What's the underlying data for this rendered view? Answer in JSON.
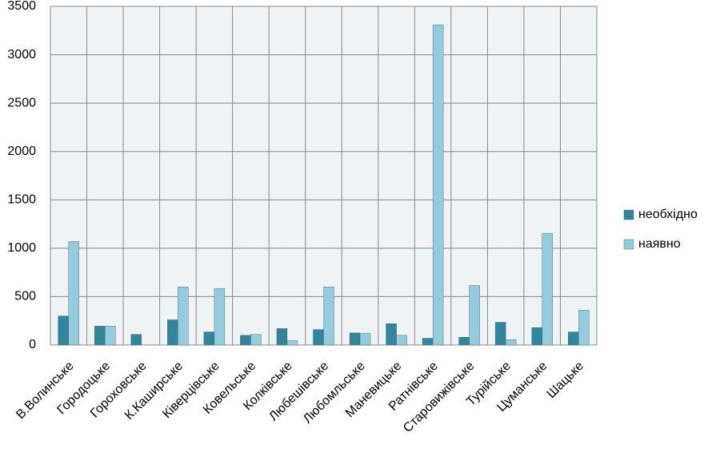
{
  "chart_data": {
    "type": "bar",
    "categories": [
      "В.Волинське",
      "Городоцьке",
      "Гороховське",
      "К.Каширське",
      "Ківерцівське",
      "Ковельське",
      "Колківське",
      "Любешівське",
      "Любомльське",
      "Маневицьке",
      "Ратнівське",
      "Старовижівське",
      "Турійське",
      "Цуманське",
      "Шацьке"
    ],
    "series": [
      {
        "name": "необхідно",
        "color": "#31859c",
        "values": [
          300,
          195,
          110,
          260,
          135,
          100,
          170,
          160,
          125,
          220,
          70,
          80,
          235,
          180,
          135
        ]
      },
      {
        "name": "наявно",
        "color": "#93cddd",
        "values": [
          1070,
          195,
          0,
          600,
          585,
          110,
          45,
          600,
          120,
          100,
          3310,
          615,
          55,
          1155,
          360
        ]
      }
    ],
    "ylim": [
      0,
      3500
    ],
    "yticks": [
      0,
      500,
      1000,
      1500,
      2000,
      2500,
      3000,
      3500
    ],
    "grid": true,
    "legend": "right"
  }
}
